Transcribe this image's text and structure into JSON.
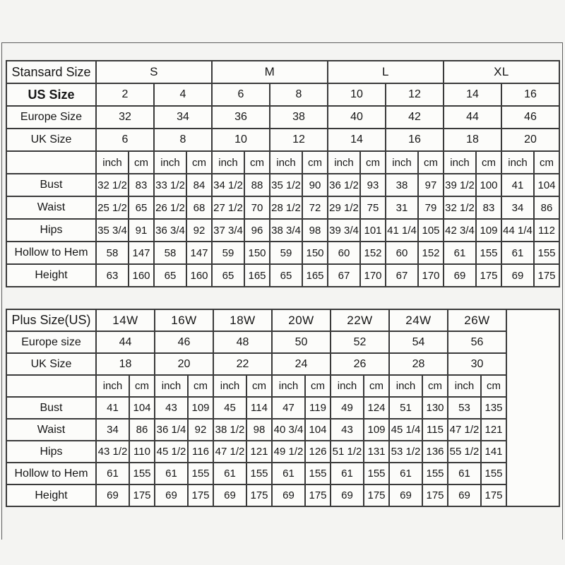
{
  "colors": {
    "background": "#f4f4f2",
    "table_border": "#3a3a3a",
    "cell_background": "#fcfcfa",
    "text": "#161616"
  },
  "chart_data": [
    {
      "type": "table",
      "name": "standard-size-table",
      "corner_label": "Stansard Size",
      "size_groups": [
        {
          "label": "S",
          "sizes": 2
        },
        {
          "label": "M",
          "sizes": 2
        },
        {
          "label": "L",
          "sizes": 2
        },
        {
          "label": "XL",
          "sizes": 2
        }
      ],
      "header_rows": [
        {
          "label": "US Size",
          "bold": true,
          "values": [
            "2",
            "4",
            "6",
            "8",
            "10",
            "12",
            "14",
            "16"
          ]
        },
        {
          "label": "Europe Size",
          "bold": false,
          "values": [
            "32",
            "34",
            "36",
            "38",
            "40",
            "42",
            "44",
            "46"
          ]
        },
        {
          "label": "UK Size",
          "bold": false,
          "values": [
            "6",
            "8",
            "10",
            "12",
            "14",
            "16",
            "18",
            "20"
          ]
        }
      ],
      "unit_labels": [
        "inch",
        "cm"
      ],
      "measure_rows": [
        {
          "label": "Bust",
          "pairs": [
            [
              "32 1/2",
              "83"
            ],
            [
              "33 1/2",
              "84"
            ],
            [
              "34 1/2",
              "88"
            ],
            [
              "35 1/2",
              "90"
            ],
            [
              "36 1/2",
              "93"
            ],
            [
              "38",
              "97"
            ],
            [
              "39 1/2",
              "100"
            ],
            [
              "41",
              "104"
            ]
          ]
        },
        {
          "label": "Waist",
          "pairs": [
            [
              "25 1/2",
              "65"
            ],
            [
              "26 1/2",
              "68"
            ],
            [
              "27 1/2",
              "70"
            ],
            [
              "28 1/2",
              "72"
            ],
            [
              "29 1/2",
              "75"
            ],
            [
              "31",
              "79"
            ],
            [
              "32 1/2",
              "83"
            ],
            [
              "34",
              "86"
            ]
          ]
        },
        {
          "label": "Hips",
          "pairs": [
            [
              "35 3/4",
              "91"
            ],
            [
              "36 3/4",
              "92"
            ],
            [
              "37 3/4",
              "96"
            ],
            [
              "38 3/4",
              "98"
            ],
            [
              "39 3/4",
              "101"
            ],
            [
              "41 1/4",
              "105"
            ],
            [
              "42 3/4",
              "109"
            ],
            [
              "44 1/4",
              "112"
            ]
          ]
        },
        {
          "label": "Hollow to Hem",
          "pairs": [
            [
              "58",
              "147"
            ],
            [
              "58",
              "147"
            ],
            [
              "59",
              "150"
            ],
            [
              "59",
              "150"
            ],
            [
              "60",
              "152"
            ],
            [
              "60",
              "152"
            ],
            [
              "61",
              "155"
            ],
            [
              "61",
              "155"
            ]
          ]
        },
        {
          "label": "Height",
          "pairs": [
            [
              "63",
              "160"
            ],
            [
              "65",
              "160"
            ],
            [
              "65",
              "165"
            ],
            [
              "65",
              "165"
            ],
            [
              "67",
              "170"
            ],
            [
              "67",
              "170"
            ],
            [
              "69",
              "175"
            ],
            [
              "69",
              "175"
            ]
          ]
        }
      ],
      "trailing_empty_column": false
    },
    {
      "type": "table",
      "name": "plus-size-table",
      "corner_label": "Plus Size(US)",
      "size_groups": [
        {
          "label": "14W",
          "sizes": 1
        },
        {
          "label": "16W",
          "sizes": 1
        },
        {
          "label": "18W",
          "sizes": 1
        },
        {
          "label": "20W",
          "sizes": 1
        },
        {
          "label": "22W",
          "sizes": 1
        },
        {
          "label": "24W",
          "sizes": 1
        },
        {
          "label": "26W",
          "sizes": 1
        }
      ],
      "header_rows": [
        {
          "label": "Europe size",
          "bold": false,
          "values": [
            "44",
            "46",
            "48",
            "50",
            "52",
            "54",
            "56"
          ]
        },
        {
          "label": "UK Size",
          "bold": false,
          "values": [
            "18",
            "20",
            "22",
            "24",
            "26",
            "28",
            "30"
          ]
        }
      ],
      "unit_labels": [
        "inch",
        "cm"
      ],
      "measure_rows": [
        {
          "label": "Bust",
          "pairs": [
            [
              "41",
              "104"
            ],
            [
              "43",
              "109"
            ],
            [
              "45",
              "114"
            ],
            [
              "47",
              "119"
            ],
            [
              "49",
              "124"
            ],
            [
              "51",
              "130"
            ],
            [
              "53",
              "135"
            ]
          ]
        },
        {
          "label": "Waist",
          "pairs": [
            [
              "34",
              "86"
            ],
            [
              "36 1/4",
              "92"
            ],
            [
              "38 1/2",
              "98"
            ],
            [
              "40 3/4",
              "104"
            ],
            [
              "43",
              "109"
            ],
            [
              "45 1/4",
              "115"
            ],
            [
              "47 1/2",
              "121"
            ]
          ]
        },
        {
          "label": "Hips",
          "pairs": [
            [
              "43 1/2",
              "110"
            ],
            [
              "45 1/2",
              "116"
            ],
            [
              "47 1/2",
              "121"
            ],
            [
              "49 1/2",
              "126"
            ],
            [
              "51 1/2",
              "131"
            ],
            [
              "53 1/2",
              "136"
            ],
            [
              "55 1/2",
              "141"
            ]
          ]
        },
        {
          "label": "Hollow to Hem",
          "pairs": [
            [
              "61",
              "155"
            ],
            [
              "61",
              "155"
            ],
            [
              "61",
              "155"
            ],
            [
              "61",
              "155"
            ],
            [
              "61",
              "155"
            ],
            [
              "61",
              "155"
            ],
            [
              "61",
              "155"
            ]
          ]
        },
        {
          "label": "Height",
          "pairs": [
            [
              "69",
              "175"
            ],
            [
              "69",
              "175"
            ],
            [
              "69",
              "175"
            ],
            [
              "69",
              "175"
            ],
            [
              "69",
              "175"
            ],
            [
              "69",
              "175"
            ],
            [
              "69",
              "175"
            ]
          ]
        }
      ],
      "trailing_empty_column": true
    }
  ]
}
